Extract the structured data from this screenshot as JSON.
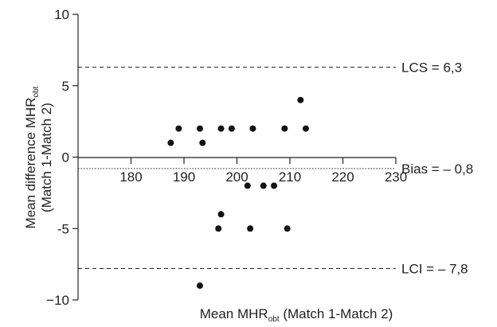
{
  "chart_data": {
    "type": "scatter",
    "xlabel": "Mean MHR",
    "xlabel_sub": "obt",
    "xlabel_suffix": " (Match 1-Match 2)",
    "ylabel_line1": "Mean difference MHR",
    "ylabel_line1_sub": "obt",
    "ylabel_line2": "(Match 1-Match 2)",
    "xlim": [
      170,
      230
    ],
    "ylim": [
      -10,
      10
    ],
    "x_ticks": [
      180,
      190,
      200,
      210,
      220,
      230
    ],
    "y_ticks": [
      10,
      5,
      0,
      -5,
      -10
    ],
    "x_tick_labels": [
      "180",
      "190",
      "200",
      "210",
      "220",
      "230"
    ],
    "y_tick_labels": [
      "10",
      "5",
      "0",
      "-5",
      "−10"
    ],
    "grid": false,
    "points": [
      {
        "x": 187.5,
        "y": 1
      },
      {
        "x": 189,
        "y": 2
      },
      {
        "x": 193,
        "y": 2
      },
      {
        "x": 193.5,
        "y": 1
      },
      {
        "x": 197,
        "y": 2
      },
      {
        "x": 199,
        "y": 2
      },
      {
        "x": 203,
        "y": 2
      },
      {
        "x": 209,
        "y": 2
      },
      {
        "x": 212,
        "y": 4
      },
      {
        "x": 213,
        "y": 2
      },
      {
        "x": 202,
        "y": -2
      },
      {
        "x": 205,
        "y": -2
      },
      {
        "x": 207,
        "y": -2
      },
      {
        "x": 197,
        "y": -4
      },
      {
        "x": 196.5,
        "y": -5
      },
      {
        "x": 202.5,
        "y": -5
      },
      {
        "x": 209.5,
        "y": -5
      },
      {
        "x": 193,
        "y": -9
      }
    ],
    "reference_lines": [
      {
        "label": "LCS = 6,3",
        "y": 6.3,
        "style": "dashed"
      },
      {
        "label": "Bias = – 0,8",
        "y": -0.8,
        "style": "dotted"
      },
      {
        "label": "LCI = – 7,8",
        "y": -7.8,
        "style": "dashed"
      }
    ]
  }
}
